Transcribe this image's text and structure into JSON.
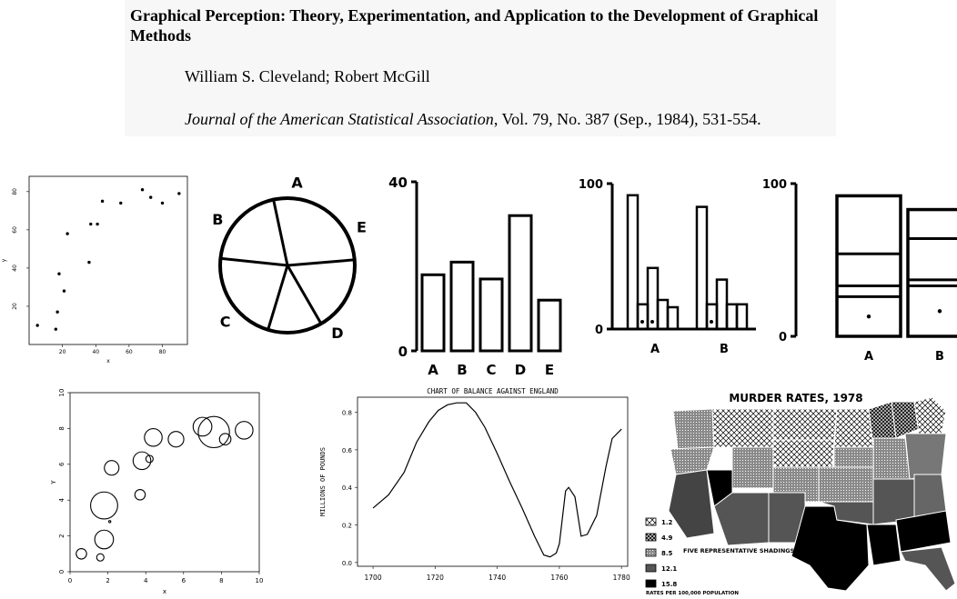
{
  "paper": {
    "title": "Graphical Perception: Theory, Experimentation, and Application to the Development of Graphical Methods",
    "authors": "William S. Cleveland; Robert McGill",
    "journal": "Journal of the American Statistical Association",
    "volume_info": ", Vol. 79, No. 387 (Sep., 1984), 531-554."
  },
  "chart_data": [
    {
      "type": "scatter",
      "title": "",
      "xlabel": "x",
      "ylabel": "y",
      "xlim": [
        0,
        95
      ],
      "ylim": [
        0,
        88
      ],
      "xticks": [
        "20",
        "40",
        "60",
        "80"
      ],
      "yticks": [
        "20",
        "40",
        "60",
        "80"
      ],
      "points": [
        [
          5,
          10
        ],
        [
          16,
          8
        ],
        [
          17,
          17
        ],
        [
          18,
          37
        ],
        [
          21,
          28
        ],
        [
          23,
          58
        ],
        [
          36,
          43
        ],
        [
          37,
          63
        ],
        [
          41,
          63
        ],
        [
          44,
          75
        ],
        [
          55,
          74
        ],
        [
          68,
          81
        ],
        [
          73,
          77
        ],
        [
          80,
          74
        ],
        [
          90,
          79
        ]
      ]
    },
    {
      "type": "pie",
      "title": "",
      "categories": [
        "A",
        "B",
        "C",
        "D",
        "E"
      ],
      "values": [
        13,
        22,
        20,
        27,
        18
      ]
    },
    {
      "type": "bar",
      "title": "",
      "categories": [
        "A",
        "B",
        "C",
        "D",
        "E"
      ],
      "values": [
        18,
        21,
        17,
        32,
        12
      ],
      "yticks": [
        "0",
        "40"
      ],
      "ylim": [
        0,
        40
      ]
    },
    {
      "type": "bar",
      "title": "",
      "groups": [
        "A",
        "B"
      ],
      "series": [
        {
          "values": [
            92,
            84
          ]
        },
        {
          "values": [
            17,
            17
          ]
        },
        {
          "values": [
            42,
            34
          ]
        },
        {
          "values": [
            20,
            17
          ]
        },
        {
          "values": [
            15,
            17
          ]
        }
      ],
      "yticks": [
        "0",
        "100"
      ],
      "ylim": [
        0,
        100
      ]
    },
    {
      "type": "bar",
      "title": "",
      "categories": [
        "A",
        "B"
      ],
      "stacked_boundaries": [
        [
          26,
          33,
          54,
          92
        ],
        [
          33,
          37,
          64,
          83
        ]
      ],
      "yticks": [
        "0",
        "100"
      ],
      "ylim": [
        0,
        100
      ]
    },
    {
      "type": "scatter",
      "title": "",
      "xlabel": "x",
      "ylabel": "Y",
      "xlim": [
        0,
        10
      ],
      "ylim": [
        0,
        10
      ],
      "xticks": [
        "0",
        "2",
        "4",
        "6",
        "8",
        "10"
      ],
      "yticks": [
        "0",
        "2",
        "4",
        "6",
        "8",
        "10"
      ],
      "points": [
        [
          0.6,
          1.0,
          0.5
        ],
        [
          1.6,
          0.8,
          0.35
        ],
        [
          1.8,
          3.7,
          1.3
        ],
        [
          1.8,
          1.8,
          0.9
        ],
        [
          2.1,
          2.8,
          0.1
        ],
        [
          2.2,
          5.8,
          0.7
        ],
        [
          3.7,
          4.3,
          0.5
        ],
        [
          3.8,
          6.2,
          0.85
        ],
        [
          4.2,
          6.3,
          0.35
        ],
        [
          4.4,
          7.5,
          0.85
        ],
        [
          5.6,
          7.4,
          0.75
        ],
        [
          7.0,
          8.1,
          0.9
        ],
        [
          7.6,
          7.8,
          1.5
        ],
        [
          8.2,
          7.4,
          0.55
        ],
        [
          9.2,
          7.9,
          0.85
        ]
      ]
    },
    {
      "type": "line",
      "title": "CHART OF BALANCE AGAINST ENGLAND",
      "xlabel": "",
      "ylabel": "MILLIONS OF POUNDS",
      "xlim": [
        1695,
        1782
      ],
      "ylim": [
        -0.02,
        0.88
      ],
      "xticks": [
        "1700",
        "1720",
        "1740",
        "1760",
        "1780"
      ],
      "yticks": [
        "0.0",
        "0.2",
        "0.4",
        "0.6",
        "0.8"
      ],
      "x": [
        1700,
        1705,
        1710,
        1714,
        1718,
        1721,
        1724,
        1727,
        1730,
        1733,
        1736,
        1740,
        1744,
        1748,
        1752,
        1755,
        1757,
        1759,
        1760,
        1761,
        1762,
        1763,
        1765,
        1767,
        1769,
        1772,
        1775,
        1777,
        1780
      ],
      "y": [
        0.29,
        0.36,
        0.48,
        0.64,
        0.75,
        0.81,
        0.84,
        0.85,
        0.85,
        0.8,
        0.72,
        0.58,
        0.43,
        0.29,
        0.14,
        0.04,
        0.03,
        0.05,
        0.1,
        0.24,
        0.38,
        0.4,
        0.35,
        0.14,
        0.15,
        0.25,
        0.51,
        0.66,
        0.71
      ]
    }
  ],
  "map": {
    "title": "MURDER RATES, 1978",
    "legend_values": [
      "1.2",
      "4.9",
      "8.5",
      "12.1",
      "15.8"
    ],
    "legend_caption": "FIVE REPRESENTATIVE SHADINGS",
    "footnote": "RATES PER 100,000 POPULATION"
  },
  "colors": {
    "background": "#ffffff",
    "ink": "#000000",
    "shade_1": "#ffffff",
    "shade_2": "#d9d9d9",
    "shade_3": "#a6a6a6",
    "shade_4": "#595959",
    "shade_5": "#000000"
  }
}
